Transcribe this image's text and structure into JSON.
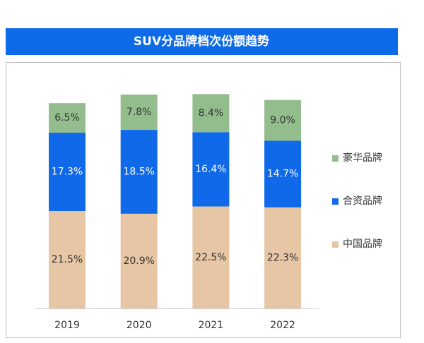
{
  "chart_data": {
    "type": "stacked_bar",
    "title": "SUV分品牌档次份额趋势",
    "categories": [
      "2019",
      "2020",
      "2021",
      "2022"
    ],
    "series": [
      {
        "name": "中国品牌",
        "color": "#e6c6a4",
        "values": [
          21.5,
          20.9,
          22.5,
          22.3
        ],
        "value_labels": [
          "21.5%",
          "20.9%",
          "22.5%",
          "22.3%"
        ]
      },
      {
        "name": "合资品牌",
        "color": "#0f69e8",
        "values": [
          17.3,
          18.5,
          16.4,
          14.7
        ],
        "value_labels": [
          "17.3%",
          "18.5%",
          "16.4%",
          "14.7%"
        ]
      },
      {
        "name": "豪华品牌",
        "color": "#93bd8c",
        "values": [
          6.5,
          7.8,
          8.4,
          9.0
        ],
        "value_labels": [
          "6.5%",
          "7.8%",
          "8.4%",
          "9.0%"
        ]
      }
    ],
    "legend": "right"
  }
}
